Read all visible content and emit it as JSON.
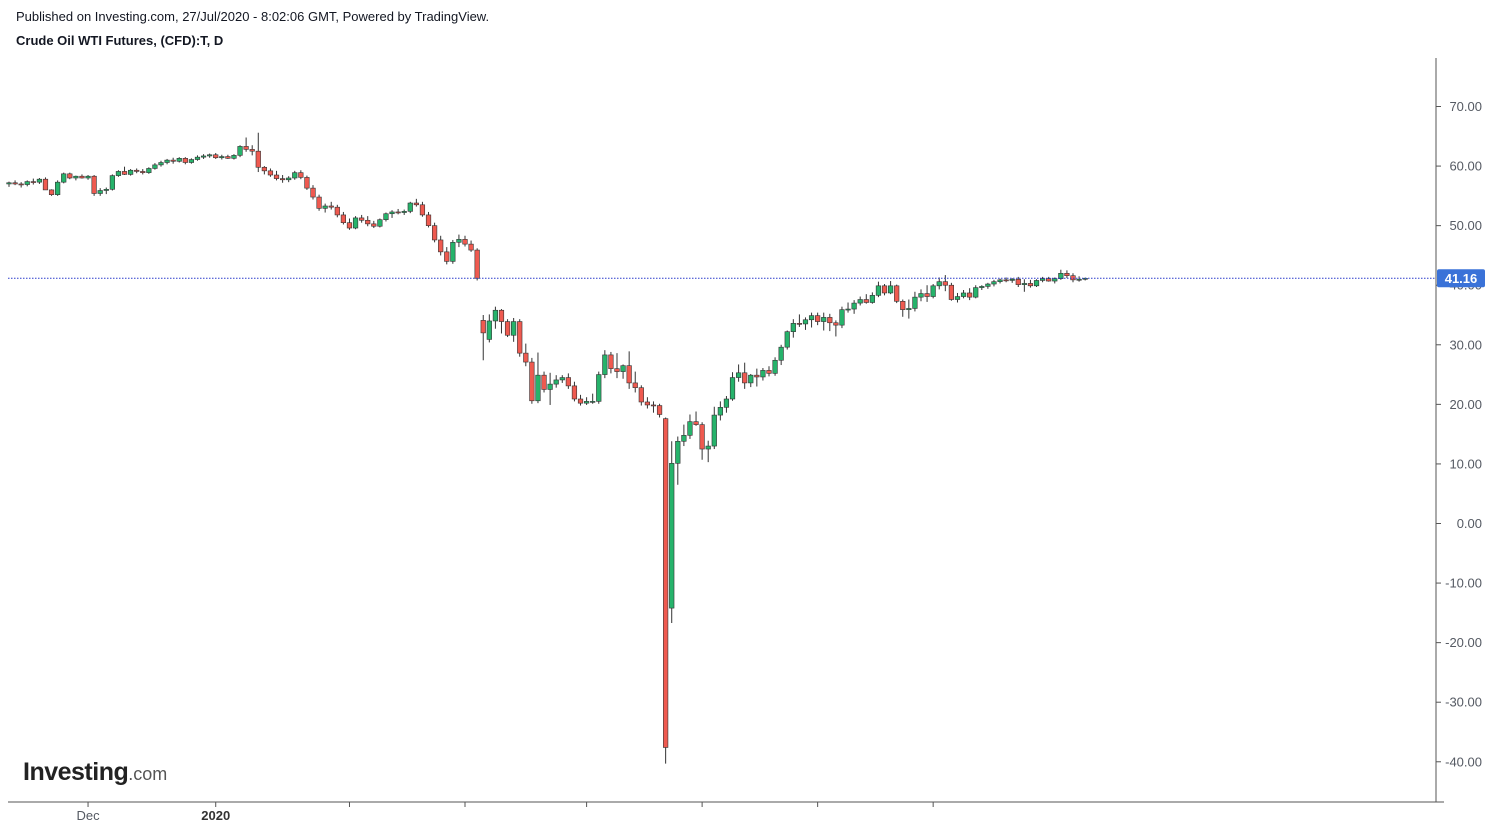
{
  "header": {
    "published": "Published on Investing.com, 27/Jul/2020 - 8:02:06 GMT, Powered by TradingView.",
    "instrument": "Crude Oil WTI Futures, (CFD):T, D"
  },
  "logo": {
    "word": "Investing",
    "suffix": ".com"
  },
  "colors": {
    "up": "#26b36b",
    "down": "#ef5a50",
    "wick": "#333333",
    "last_price_line": "#2b3bcc",
    "last_price_badge": "#3a72d8"
  },
  "chart_data": {
    "type": "candlestick",
    "title": "Crude Oil WTI Futures, (CFD):T, D",
    "ylim": [
      -43,
      78
    ],
    "y_ticks": [
      "70.00",
      "60.00",
      "50.00",
      "40.00",
      "30.00",
      "20.00",
      "10.00",
      "0.00",
      "-10.00",
      "-20.00",
      "-30.00",
      "-40.00"
    ],
    "x_labels": [
      {
        "text": "Dec",
        "bold": false,
        "index": 13
      },
      {
        "text": "2020",
        "bold": true,
        "index": 34
      }
    ],
    "x_minor_tick_indices": [
      56,
      75,
      95,
      114,
      133,
      152
    ],
    "last_price": "41.16",
    "candles": [
      [
        57.0,
        57.4,
        56.5,
        57.2
      ],
      [
        57.2,
        57.6,
        56.8,
        57.0
      ],
      [
        57.0,
        57.3,
        56.4,
        56.9
      ],
      [
        56.9,
        57.6,
        56.6,
        57.4
      ],
      [
        57.4,
        57.9,
        56.9,
        57.3
      ],
      [
        57.3,
        58.0,
        57.0,
        57.8
      ],
      [
        57.8,
        58.1,
        56.3,
        56.0
      ],
      [
        56.0,
        56.1,
        55.0,
        55.2
      ],
      [
        55.2,
        57.6,
        55.0,
        57.3
      ],
      [
        57.3,
        58.9,
        57.1,
        58.7
      ],
      [
        58.7,
        58.9,
        57.8,
        58.0
      ],
      [
        58.0,
        58.4,
        57.6,
        58.3
      ],
      [
        58.3,
        58.6,
        57.9,
        58.0
      ],
      [
        58.0,
        58.5,
        57.7,
        58.3
      ],
      [
        58.3,
        58.5,
        55.0,
        55.4
      ],
      [
        55.4,
        56.3,
        55.0,
        55.9
      ],
      [
        55.9,
        56.4,
        55.3,
        56.1
      ],
      [
        56.1,
        58.6,
        55.9,
        58.4
      ],
      [
        58.4,
        59.3,
        58.2,
        59.1
      ],
      [
        59.1,
        59.9,
        58.5,
        58.6
      ],
      [
        58.6,
        59.5,
        58.4,
        59.3
      ],
      [
        59.3,
        59.6,
        58.8,
        59.1
      ],
      [
        59.1,
        59.5,
        58.6,
        58.9
      ],
      [
        58.9,
        59.8,
        58.7,
        59.6
      ],
      [
        59.6,
        60.5,
        59.4,
        60.2
      ],
      [
        60.2,
        60.9,
        59.9,
        60.6
      ],
      [
        60.6,
        61.2,
        60.3,
        61.0
      ],
      [
        61.0,
        61.4,
        60.4,
        60.8
      ],
      [
        60.8,
        61.5,
        60.6,
        61.3
      ],
      [
        61.3,
        61.5,
        60.3,
        60.6
      ],
      [
        60.6,
        61.3,
        60.4,
        61.1
      ],
      [
        61.1,
        61.8,
        60.9,
        61.5
      ],
      [
        61.5,
        62.0,
        61.2,
        61.7
      ],
      [
        61.7,
        62.1,
        61.4,
        61.9
      ],
      [
        61.9,
        62.2,
        61.2,
        61.4
      ],
      [
        61.4,
        61.9,
        61.1,
        61.6
      ],
      [
        61.6,
        61.9,
        61.2,
        61.3
      ],
      [
        61.3,
        62.0,
        61.1,
        61.8
      ],
      [
        61.8,
        63.5,
        61.5,
        63.3
      ],
      [
        63.3,
        64.8,
        62.4,
        62.8
      ],
      [
        62.8,
        63.5,
        61.8,
        62.5
      ],
      [
        62.5,
        65.6,
        59.0,
        59.8
      ],
      [
        59.8,
        60.0,
        58.6,
        59.2
      ],
      [
        59.2,
        59.6,
        58.2,
        58.5
      ],
      [
        58.5,
        59.2,
        57.6,
        57.9
      ],
      [
        57.9,
        58.5,
        57.2,
        57.7
      ],
      [
        57.7,
        58.3,
        57.3,
        58.0
      ],
      [
        58.0,
        59.2,
        57.7,
        58.9
      ],
      [
        58.9,
        59.3,
        57.8,
        58.1
      ],
      [
        58.1,
        58.4,
        56.0,
        56.3
      ],
      [
        56.3,
        56.8,
        54.4,
        54.8
      ],
      [
        54.8,
        55.2,
        52.5,
        52.9
      ],
      [
        52.9,
        53.7,
        52.2,
        53.3
      ],
      [
        53.3,
        54.0,
        52.7,
        53.1
      ],
      [
        53.1,
        53.5,
        51.4,
        51.8
      ],
      [
        51.8,
        52.3,
        50.2,
        50.5
      ],
      [
        50.5,
        51.2,
        49.3,
        49.6
      ],
      [
        49.6,
        51.6,
        49.4,
        51.3
      ],
      [
        51.3,
        51.8,
        50.5,
        50.9
      ],
      [
        50.9,
        51.6,
        49.9,
        50.3
      ],
      [
        50.3,
        50.8,
        49.6,
        49.9
      ],
      [
        49.9,
        51.2,
        49.7,
        51.0
      ],
      [
        51.0,
        52.2,
        50.7,
        52.0
      ],
      [
        52.0,
        52.6,
        51.3,
        52.3
      ],
      [
        52.3,
        52.8,
        51.9,
        52.2
      ],
      [
        52.2,
        52.7,
        51.8,
        52.4
      ],
      [
        52.4,
        54.0,
        52.1,
        53.8
      ],
      [
        53.8,
        54.5,
        53.2,
        53.5
      ],
      [
        53.5,
        54.0,
        51.5,
        51.8
      ],
      [
        51.8,
        52.3,
        49.7,
        50.0
      ],
      [
        50.0,
        50.5,
        47.2,
        47.6
      ],
      [
        47.6,
        48.3,
        45.0,
        45.6
      ],
      [
        45.6,
        46.4,
        43.5,
        44.0
      ],
      [
        44.0,
        47.6,
        43.6,
        47.2
      ],
      [
        47.2,
        48.5,
        46.4,
        47.7
      ],
      [
        47.7,
        48.3,
        46.5,
        46.9
      ],
      [
        46.9,
        47.5,
        45.6,
        45.9
      ],
      [
        45.9,
        46.2,
        40.8,
        41.16
      ],
      [
        34.1,
        35.0,
        27.4,
        32.0
      ],
      [
        30.9,
        35.1,
        30.4,
        34.0
      ],
      [
        34.0,
        36.4,
        32.7,
        35.8
      ],
      [
        35.8,
        36.0,
        31.9,
        33.9
      ],
      [
        33.9,
        34.3,
        31.3,
        31.6
      ],
      [
        31.6,
        34.5,
        30.5,
        33.9
      ],
      [
        33.9,
        34.3,
        28.0,
        28.6
      ],
      [
        28.6,
        30.2,
        26.4,
        27.1
      ],
      [
        27.1,
        27.8,
        20.1,
        20.6
      ],
      [
        20.6,
        28.7,
        20.2,
        24.9
      ],
      [
        24.9,
        25.5,
        22.0,
        22.5
      ],
      [
        22.5,
        25.3,
        19.9,
        23.4
      ],
      [
        23.4,
        24.9,
        22.8,
        24.1
      ],
      [
        24.1,
        24.9,
        23.6,
        24.5
      ],
      [
        24.5,
        25.2,
        22.6,
        23.1
      ],
      [
        23.1,
        23.8,
        20.5,
        20.9
      ],
      [
        20.9,
        21.6,
        19.8,
        20.2
      ],
      [
        20.2,
        21.2,
        19.9,
        20.5
      ],
      [
        20.5,
        21.8,
        20.1,
        20.5
      ],
      [
        20.5,
        25.5,
        20.1,
        25.0
      ],
      [
        25.0,
        29.1,
        24.4,
        28.3
      ],
      [
        28.3,
        28.8,
        25.2,
        26.0
      ],
      [
        26.0,
        28.6,
        24.4,
        25.5
      ],
      [
        25.5,
        26.7,
        24.3,
        26.5
      ],
      [
        26.5,
        28.9,
        22.6,
        23.6
      ],
      [
        23.6,
        25.5,
        22.0,
        22.8
      ],
      [
        22.8,
        23.2,
        19.8,
        20.4
      ],
      [
        20.4,
        21.2,
        19.3,
        19.9
      ],
      [
        19.9,
        20.5,
        18.6,
        19.8
      ],
      [
        19.8,
        20.1,
        17.8,
        18.3
      ],
      [
        17.6,
        17.8,
        -40.3,
        -37.6
      ],
      [
        -14.2,
        13.8,
        -16.7,
        10.1
      ],
      [
        10.1,
        14.6,
        6.5,
        13.8
      ],
      [
        13.8,
        16.6,
        13.0,
        14.8
      ],
      [
        14.8,
        18.3,
        14.2,
        17.1
      ],
      [
        17.1,
        18.8,
        16.4,
        16.6
      ],
      [
        16.6,
        17.0,
        10.7,
        12.5
      ],
      [
        12.5,
        13.9,
        10.3,
        13.0
      ],
      [
        13.0,
        19.6,
        12.5,
        18.2
      ],
      [
        18.2,
        20.5,
        17.3,
        19.5
      ],
      [
        19.5,
        21.4,
        18.6,
        20.9
      ],
      [
        20.9,
        25.4,
        20.6,
        24.5
      ],
      [
        24.5,
        26.7,
        23.8,
        25.3
      ],
      [
        25.3,
        27.0,
        22.6,
        23.6
      ],
      [
        23.6,
        25.1,
        22.9,
        24.9
      ],
      [
        24.9,
        26.0,
        23.0,
        24.6
      ],
      [
        24.6,
        26.1,
        24.0,
        25.7
      ],
      [
        25.7,
        26.4,
        24.7,
        25.2
      ],
      [
        25.2,
        27.9,
        24.8,
        27.4
      ],
      [
        27.4,
        30.0,
        26.6,
        29.6
      ],
      [
        29.6,
        32.4,
        29.2,
        32.2
      ],
      [
        32.2,
        34.3,
        31.2,
        33.6
      ],
      [
        33.6,
        35.1,
        33.0,
        33.5
      ],
      [
        33.5,
        34.6,
        32.5,
        34.2
      ],
      [
        34.2,
        35.4,
        32.9,
        34.9
      ],
      [
        34.9,
        35.4,
        33.3,
        33.9
      ],
      [
        33.9,
        35.4,
        32.4,
        34.6
      ],
      [
        34.6,
        35.2,
        32.3,
        33.7
      ],
      [
        33.7,
        34.1,
        31.4,
        33.3
      ],
      [
        33.3,
        36.4,
        32.8,
        35.9
      ],
      [
        35.9,
        37.1,
        35.4,
        36.0
      ],
      [
        36.0,
        37.5,
        35.2,
        37.0
      ],
      [
        37.0,
        38.1,
        36.6,
        37.6
      ],
      [
        37.6,
        38.5,
        36.9,
        37.1
      ],
      [
        37.1,
        38.8,
        36.9,
        38.3
      ],
      [
        38.3,
        40.6,
        38.0,
        39.9
      ],
      [
        39.9,
        40.2,
        38.3,
        38.7
      ],
      [
        38.7,
        40.7,
        38.5,
        39.9
      ],
      [
        39.9,
        40.1,
        37.0,
        37.3
      ],
      [
        37.3,
        37.6,
        34.7,
        35.9
      ],
      [
        35.9,
        37.6,
        34.4,
        36.1
      ],
      [
        36.1,
        38.9,
        35.6,
        38.0
      ],
      [
        38.0,
        39.3,
        37.3,
        38.6
      ],
      [
        38.6,
        40.0,
        37.2,
        38.1
      ],
      [
        38.1,
        40.2,
        37.8,
        39.9
      ],
      [
        39.9,
        41.3,
        39.3,
        40.6
      ],
      [
        40.6,
        41.7,
        39.0,
        40.0
      ],
      [
        40.0,
        40.4,
        37.4,
        37.6
      ],
      [
        37.6,
        38.7,
        37.1,
        38.1
      ],
      [
        38.1,
        39.2,
        37.8,
        38.7
      ],
      [
        38.7,
        39.5,
        37.5,
        38.0
      ],
      [
        38.0,
        40.0,
        37.8,
        39.6
      ],
      [
        39.6,
        40.0,
        39.2,
        39.8
      ],
      [
        39.8,
        40.4,
        39.4,
        40.2
      ],
      [
        40.2,
        40.9,
        39.8,
        40.6
      ],
      [
        40.6,
        41.1,
        40.3,
        40.9
      ],
      [
        40.9,
        41.3,
        40.5,
        40.8
      ],
      [
        40.8,
        41.2,
        40.4,
        41.0
      ],
      [
        41.0,
        41.4,
        39.7,
        40.1
      ],
      [
        40.1,
        41.0,
        38.9,
        40.3
      ],
      [
        40.3,
        40.9,
        39.6,
        39.9
      ],
      [
        39.9,
        41.0,
        39.7,
        40.8
      ],
      [
        40.8,
        41.4,
        40.5,
        41.1
      ],
      [
        41.1,
        41.4,
        40.6,
        40.7
      ],
      [
        40.7,
        41.3,
        40.3,
        41.1
      ],
      [
        41.1,
        42.6,
        40.9,
        42.0
      ],
      [
        42.0,
        42.5,
        41.2,
        41.6
      ],
      [
        41.6,
        42.0,
        40.5,
        40.9
      ],
      [
        40.9,
        41.5,
        40.6,
        41.0
      ],
      [
        41.0,
        41.3,
        40.8,
        41.16
      ]
    ]
  }
}
